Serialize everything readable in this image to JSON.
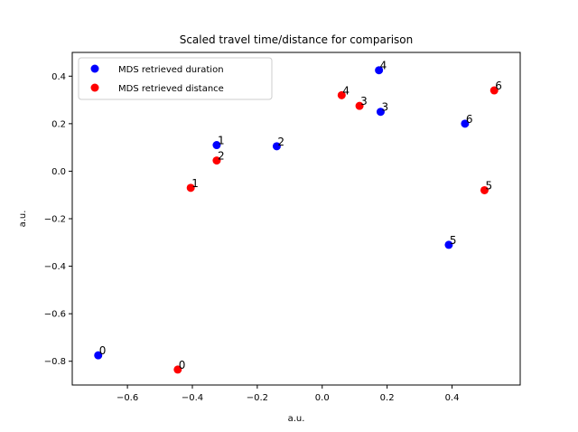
{
  "chart_data": {
    "type": "scatter",
    "title": "Scaled travel time/distance for comparison",
    "xlabel": "a.u.",
    "ylabel": "a.u.",
    "xlim": [
      -0.77,
      0.61
    ],
    "ylim": [
      -0.9,
      0.5
    ],
    "xticks": [
      -0.6,
      -0.4,
      -0.2,
      0.0,
      0.2,
      0.4
    ],
    "xtick_labels": [
      "−0.6",
      "−0.4",
      "−0.2",
      "0.0",
      "0.2",
      "0.4"
    ],
    "yticks": [
      -0.8,
      -0.6,
      -0.4,
      -0.2,
      0.0,
      0.2,
      0.4
    ],
    "ytick_labels": [
      "−0.8",
      "−0.6",
      "−0.4",
      "−0.2",
      "0.0",
      "0.2",
      "0.4"
    ],
    "grid": false,
    "legend_position": "top-left",
    "series": [
      {
        "name": "MDS retrieved duration",
        "color": "#0000ff",
        "points": [
          {
            "x": -0.69,
            "y": -0.775,
            "label": "0"
          },
          {
            "x": -0.325,
            "y": 0.11,
            "label": "1"
          },
          {
            "x": -0.14,
            "y": 0.105,
            "label": "2"
          },
          {
            "x": 0.18,
            "y": 0.25,
            "label": "3"
          },
          {
            "x": 0.175,
            "y": 0.425,
            "label": "4"
          },
          {
            "x": 0.39,
            "y": -0.31,
            "label": "5"
          },
          {
            "x": 0.44,
            "y": 0.2,
            "label": "6"
          }
        ]
      },
      {
        "name": "MDS retrieved distance",
        "color": "#ff0000",
        "points": [
          {
            "x": -0.445,
            "y": -0.835,
            "label": "0"
          },
          {
            "x": -0.405,
            "y": -0.07,
            "label": "1"
          },
          {
            "x": -0.325,
            "y": 0.045,
            "label": "2"
          },
          {
            "x": 0.115,
            "y": 0.275,
            "label": "3"
          },
          {
            "x": 0.06,
            "y": 0.32,
            "label": "4"
          },
          {
            "x": 0.5,
            "y": -0.08,
            "label": "5"
          },
          {
            "x": 0.53,
            "y": 0.34,
            "label": "6"
          }
        ]
      }
    ]
  }
}
